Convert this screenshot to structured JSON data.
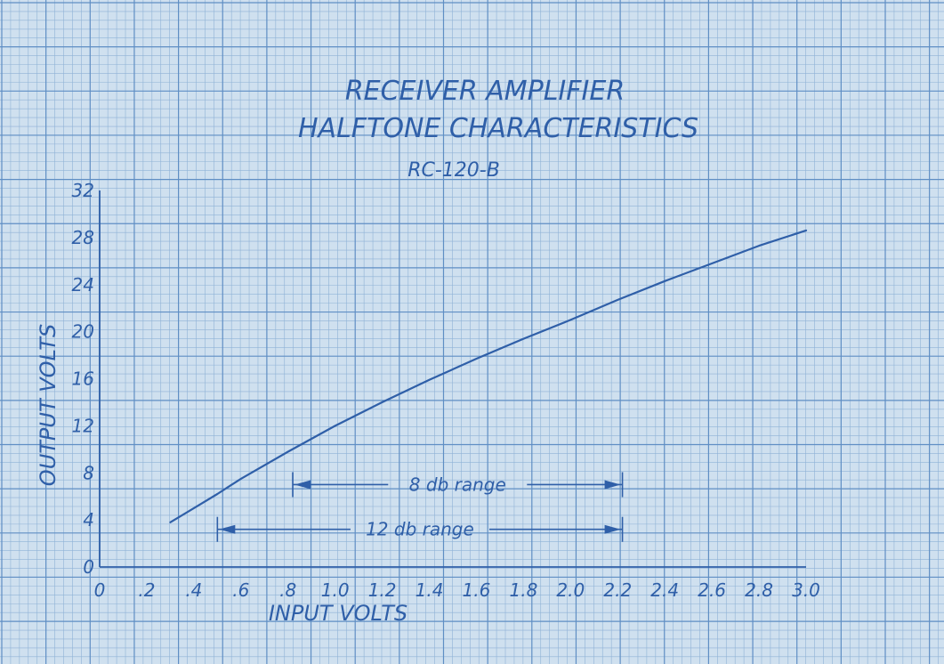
{
  "colors": {
    "paper": "#cfe0ef",
    "grid_minor": "#8fb2d6",
    "grid_major": "#5f8ec4",
    "ink": "#2f5fa8"
  },
  "chart_data": {
    "type": "line",
    "title": "RECEIVER AMPLIFIER",
    "subtitle": "HALFTONE CHARACTERISTICS",
    "model": "RC-120-B",
    "xlabel": "INPUT VOLTS",
    "ylabel": "OUTPUT VOLTS",
    "xlim": [
      0,
      3.0
    ],
    "ylim": [
      0,
      32
    ],
    "grid": true,
    "legend": "none",
    "x_ticks": [
      "0",
      ".2",
      ".4",
      ".6",
      ".8",
      "1.0",
      "1.2",
      "1.4",
      "1.6",
      "1.8",
      "2.0",
      "2.2",
      "2.4",
      "2.6",
      "2.8",
      "3.0"
    ],
    "x_tick_values": [
      0,
      0.2,
      0.4,
      0.6,
      0.8,
      1.0,
      1.2,
      1.4,
      1.6,
      1.8,
      2.0,
      2.2,
      2.4,
      2.6,
      2.8,
      3.0
    ],
    "y_ticks": [
      "0",
      "4",
      "8",
      "12",
      "16",
      "20",
      "24",
      "28",
      "32"
    ],
    "y_tick_values": [
      0,
      4,
      8,
      12,
      16,
      20,
      24,
      28,
      32
    ],
    "series": [
      {
        "x": [
          0.3,
          0.4,
          0.5,
          0.6,
          0.8,
          1.0,
          1.2,
          1.4,
          1.6,
          1.8,
          2.0,
          2.2,
          2.4,
          2.6,
          2.8,
          3.0
        ],
        "y": [
          3.8,
          5.0,
          6.2,
          7.5,
          9.8,
          12.0,
          14.0,
          15.9,
          17.7,
          19.4,
          21.0,
          22.7,
          24.3,
          25.8,
          27.3,
          28.6
        ]
      }
    ],
    "annotations": [
      {
        "text": "8 db range",
        "x_start": 0.82,
        "x_end": 2.22,
        "y": 7.0
      },
      {
        "text": "12 db range",
        "x_start": 0.5,
        "x_end": 2.22,
        "y": 3.2
      }
    ]
  }
}
